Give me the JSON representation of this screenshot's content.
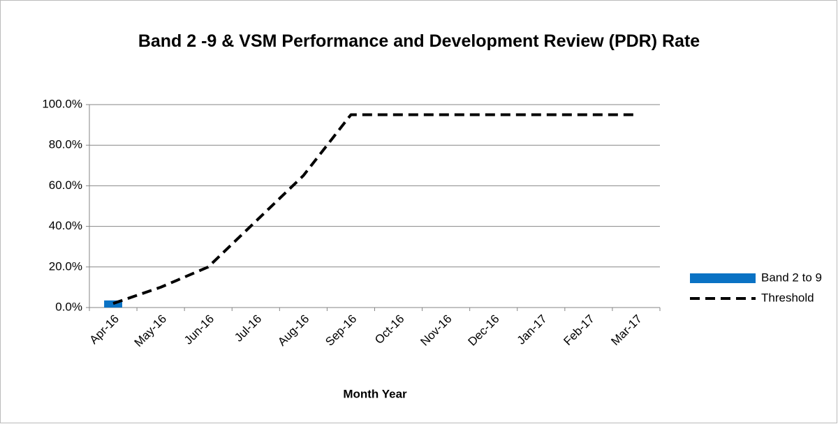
{
  "chart_data": {
    "type": "bar_line",
    "title": "Band 2 -9 & VSM Performance and Development Review (PDR) Rate",
    "x_label": "Month Year",
    "categories": [
      "Apr-16",
      "May-16",
      "Jun-16",
      "Jul-16",
      "Aug-16",
      "Sep-16",
      "Oct-16",
      "Nov-16",
      "Dec-16",
      "Jan-17",
      "Feb-17",
      "Mar-17"
    ],
    "series": [
      {
        "name": "Band 2 to 9",
        "type": "bar",
        "color": "#0a72c4",
        "values": [
          3.5,
          null,
          null,
          null,
          null,
          null,
          null,
          null,
          null,
          null,
          null,
          null
        ]
      },
      {
        "name": "Threshold",
        "type": "line",
        "style": "dashed",
        "color": "#000000",
        "values": [
          2,
          10,
          20,
          42.5,
          65,
          95,
          95,
          95,
          95,
          95,
          95,
          95
        ]
      }
    ],
    "ylim": [
      0,
      100
    ],
    "yticks": [
      {
        "value": 0,
        "label": "0.0%"
      },
      {
        "value": 20,
        "label": "20.0%"
      },
      {
        "value": 40,
        "label": "40.0%"
      },
      {
        "value": 60,
        "label": "60.0%"
      },
      {
        "value": 80,
        "label": "80.0%"
      },
      {
        "value": 100,
        "label": "100.0%"
      }
    ],
    "grid": true,
    "legend": "right"
  }
}
